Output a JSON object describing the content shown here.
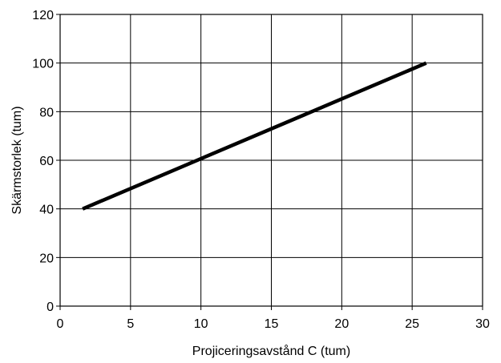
{
  "chart_data": {
    "type": "line",
    "title": "",
    "xlabel": "Projiceringsavstånd C (tum)",
    "ylabel": "Skärmstorlek (tum)",
    "xlim": [
      0,
      30
    ],
    "ylim": [
      0,
      120
    ],
    "x_ticks": [
      0,
      5,
      10,
      15,
      20,
      25,
      30
    ],
    "y_ticks": [
      0,
      20,
      40,
      60,
      80,
      100,
      120
    ],
    "grid": true,
    "legend": "none",
    "series": [
      {
        "x": [
          1.6,
          26.0
        ],
        "y": [
          40,
          100
        ],
        "color": "#000000"
      }
    ]
  }
}
